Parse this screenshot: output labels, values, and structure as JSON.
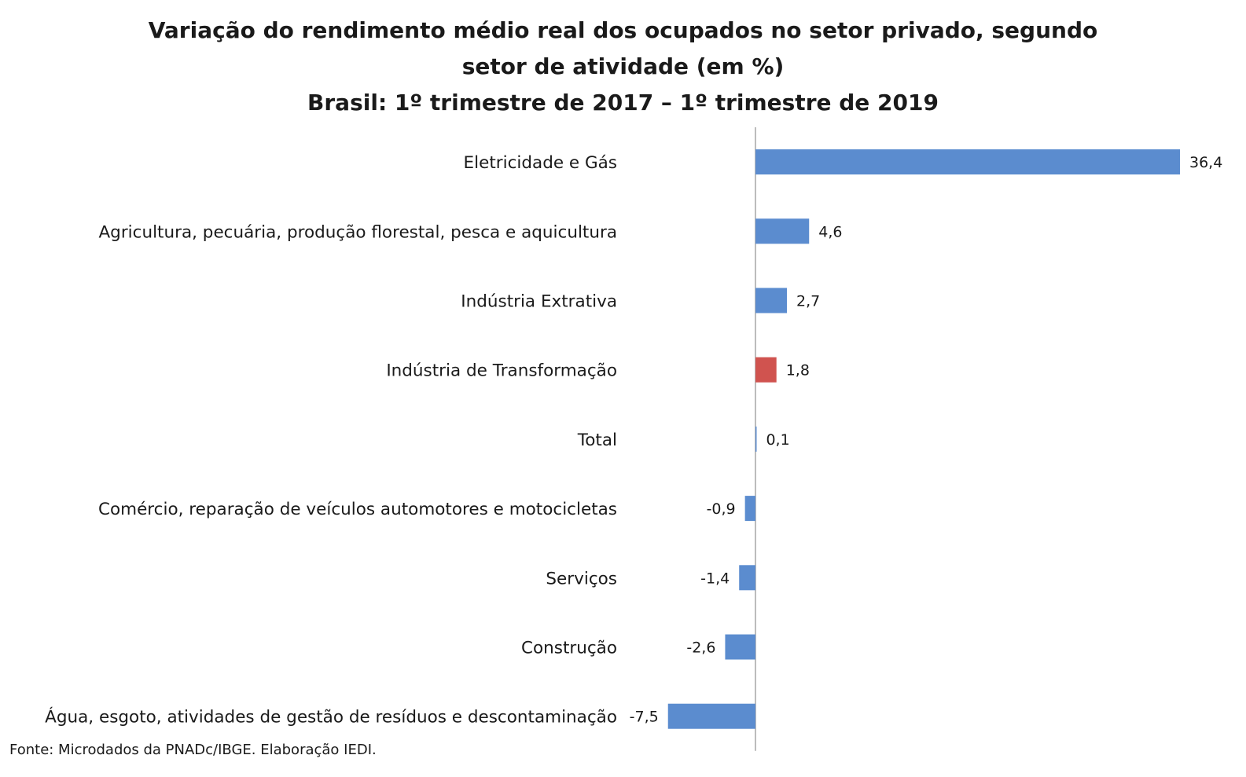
{
  "chart_data": {
    "type": "bar",
    "orientation": "horizontal",
    "title": {
      "line1": "Variação do rendimento médio real dos ocupados no setor privado, segundo",
      "line2": "setor de atividade (em %)",
      "line3": "Brasil: 1º trimestre de 2017 – 1º trimestre de 2019"
    },
    "categories": [
      "Eletricidade e Gás",
      "Agricultura, pecuária, produção florestal, pesca e aquicultura",
      "Indústria Extrativa",
      "Indústria de Transformação",
      "Total",
      "Comércio, reparação de veículos automotores e motocicletas",
      "Serviços",
      "Construção",
      "Água, esgoto, atividades de gestão de resíduos e descontaminação"
    ],
    "values": [
      36.4,
      4.6,
      2.7,
      1.8,
      0.1,
      -0.9,
      -1.4,
      -2.6,
      -7.5
    ],
    "value_labels": [
      "36,4",
      "4,6",
      "2,7",
      "1,8",
      "0,1",
      "-0,9",
      "-1,4",
      "-2,6",
      "-7,5"
    ],
    "highlight_category": "Indústria de Transformação",
    "colors": {
      "bar": "#5b8ccf",
      "highlight": "#d0534f",
      "axis": "#a6a6a6"
    },
    "grid": false,
    "legend": "none"
  },
  "source": "Fonte: Microdados da PNADc/IBGE. Elaboração IEDI."
}
